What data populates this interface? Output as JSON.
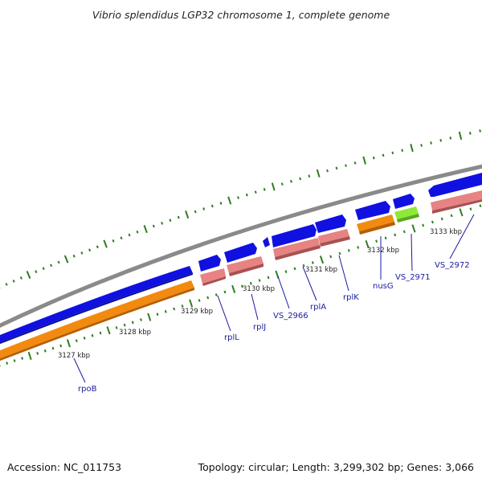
{
  "title": "Vibrio splendidus LGP32 chromosome 1, complete genome",
  "accession": "Accession: NC_011753",
  "topology": "Topology: circular; Length: 3,299,302 bp; Genes: 3,066",
  "colors": {
    "backbone": "#8a8a8a",
    "forward_cds": "#1010e0",
    "reverse_cds": "#f28a10",
    "rrna_like": "#e78383",
    "highlight": "#8ee83a",
    "ruler": "#2e7d1e",
    "label": "#1a1aa0"
  },
  "scale_labels": [
    "3127 kbp",
    "3128 kbp",
    "3129 kbp",
    "3130 kbp",
    "3131 kbp",
    "3132 kbp",
    "3133 kbp"
  ],
  "genes": [
    "rpoB",
    "rplL",
    "rplJ",
    "VS_2966",
    "rplA",
    "rplK",
    "nusG",
    "VS_2971",
    "VS_2972"
  ]
}
